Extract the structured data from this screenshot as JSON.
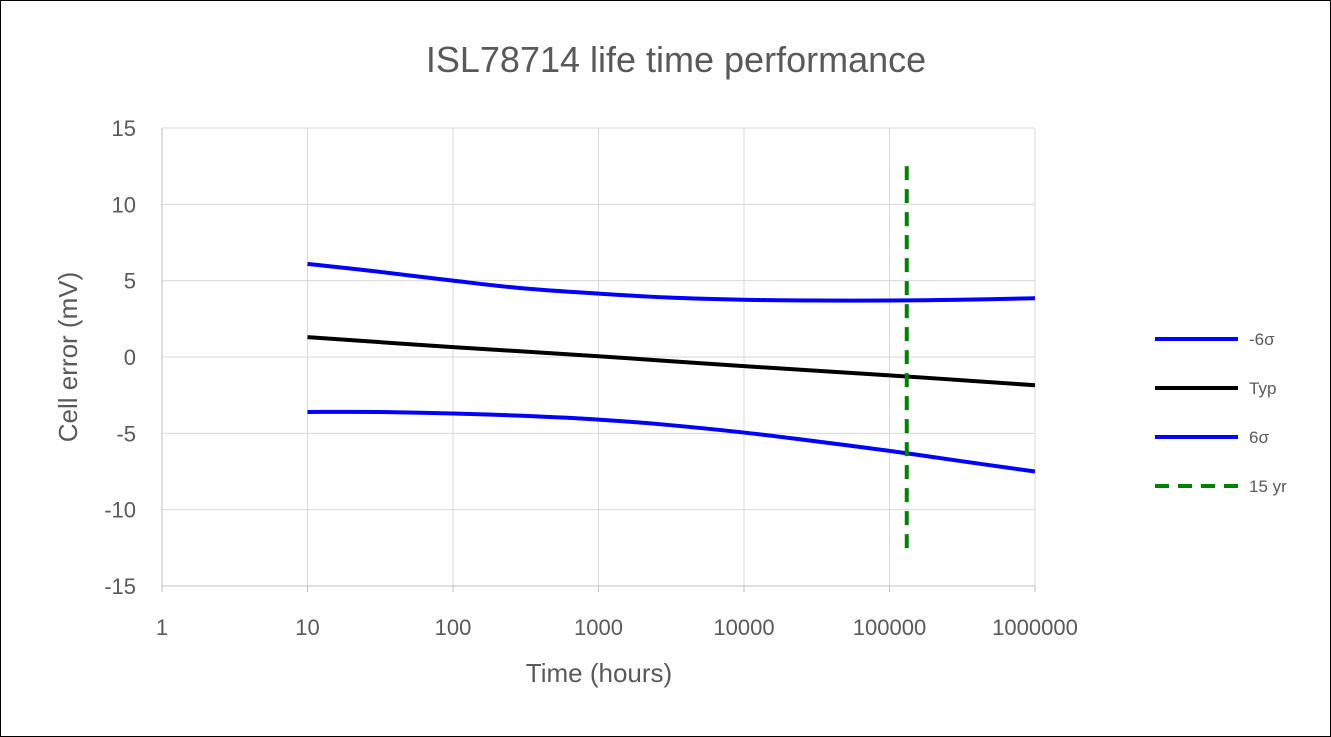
{
  "chart_data": {
    "type": "line",
    "title": "ISL78714 life time performance",
    "xlabel": "Time (hours)",
    "ylabel": "Cell error (mV)",
    "x_scale": "log",
    "xlim": [
      1,
      1000000
    ],
    "ylim": [
      -15,
      15
    ],
    "x_ticks": [
      1,
      10,
      100,
      1000,
      10000,
      100000,
      1000000
    ],
    "y_ticks": [
      -15,
      -10,
      -5,
      0,
      5,
      10,
      15
    ],
    "grid": true,
    "legend_position": "right",
    "series": [
      {
        "name": "-6σ",
        "color": "#0000FF",
        "dash": "solid",
        "x": [
          10,
          30,
          100,
          300,
          1000,
          3000,
          10000,
          30000,
          100000,
          300000,
          1000000
        ],
        "y": [
          6.1,
          5.6,
          5.0,
          4.5,
          4.15,
          3.9,
          3.75,
          3.7,
          3.7,
          3.75,
          3.85
        ]
      },
      {
        "name": "Typ",
        "color": "#000000",
        "dash": "solid",
        "x": [
          10,
          100,
          1000,
          10000,
          100000,
          1000000
        ],
        "y": [
          1.3,
          0.65,
          0.05,
          -0.6,
          -1.2,
          -1.85
        ]
      },
      {
        "name": "6σ",
        "color": "#0000FF",
        "dash": "solid",
        "x": [
          10,
          30,
          100,
          300,
          1000,
          3000,
          10000,
          30000,
          100000,
          300000,
          1000000
        ],
        "y": [
          -3.6,
          -3.6,
          -3.7,
          -3.85,
          -4.1,
          -4.45,
          -4.95,
          -5.5,
          -6.15,
          -6.8,
          -7.5
        ]
      },
      {
        "name": "15 yr",
        "color": "#008000",
        "dash": "dashed",
        "x": [
          131400,
          131400
        ],
        "y": [
          12.5,
          -13
        ]
      }
    ]
  }
}
